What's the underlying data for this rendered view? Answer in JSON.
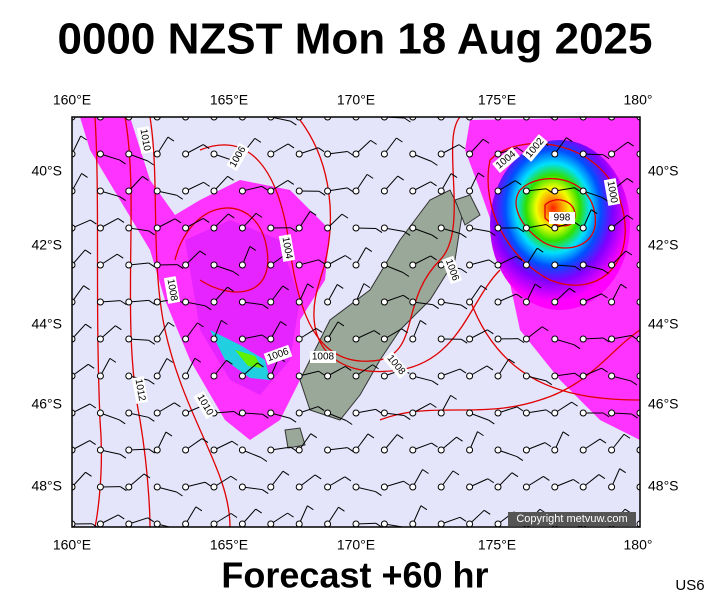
{
  "header": {
    "title": "0000 NZST Mon 18 Aug 2025"
  },
  "map": {
    "lon_labels_top": [
      "160°E",
      "165°E",
      "170°E",
      "175°E",
      "180°"
    ],
    "lon_labels_bottom": [
      "160°E",
      "165°E",
      "170°E",
      "175°E",
      "180°"
    ],
    "lat_labels_left": [
      "40°S",
      "42°S",
      "44°S",
      "46°S",
      "48°S"
    ],
    "lat_labels_right": [
      "40°S",
      "42°S",
      "44°S",
      "46°S",
      "48°S"
    ],
    "contour_labels": [
      "1010",
      "1006",
      "1004",
      "1008",
      "1006",
      "1008",
      "1008",
      "1012",
      "1010",
      "1006",
      "1004",
      "1002",
      "1000",
      "998"
    ],
    "copyright": "Copyright metvuw.com"
  },
  "footer": {
    "forecast": "Forecast +60 hr",
    "code": "US6"
  }
}
